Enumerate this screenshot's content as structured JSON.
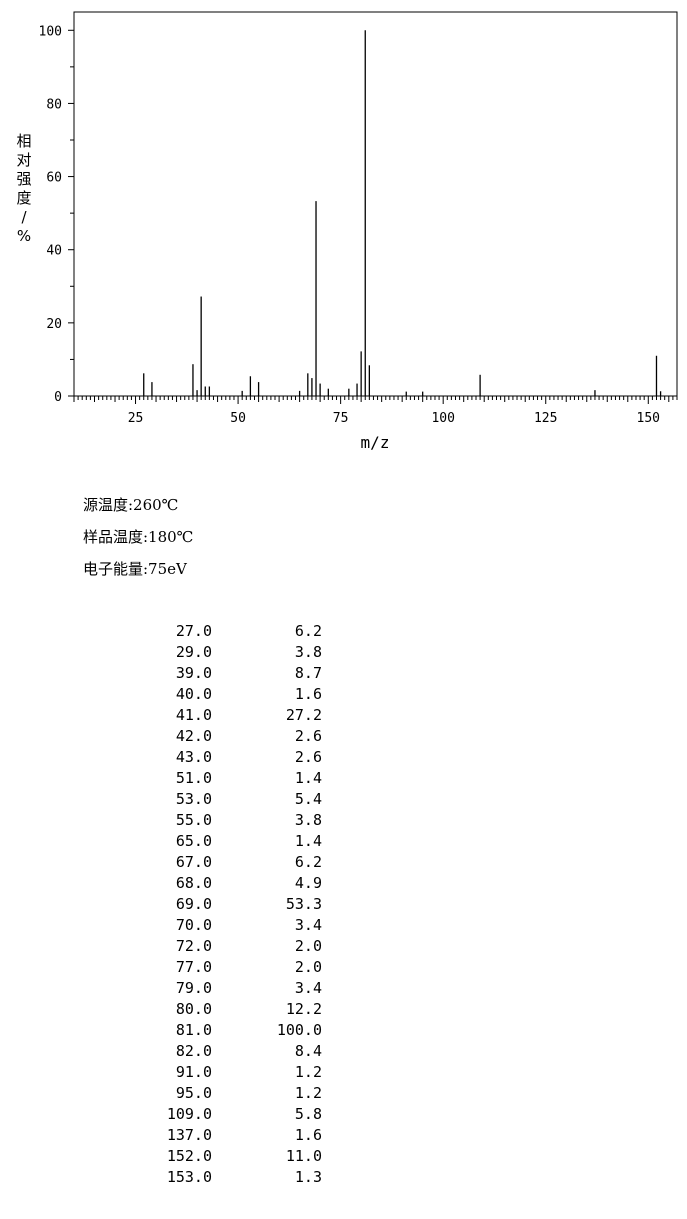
{
  "chart_data": {
    "type": "bar",
    "ylabel": "相对强度/%",
    "xlabel": "m/z",
    "xlim": [
      10,
      157
    ],
    "ylim": [
      0,
      105
    ],
    "xticks": [
      25,
      50,
      75,
      100,
      125,
      150
    ],
    "yticks": [
      0,
      20,
      40,
      60,
      80,
      100
    ],
    "grid": false,
    "peaks": [
      {
        "mz": 27.0,
        "intensity": 6.2
      },
      {
        "mz": 29.0,
        "intensity": 3.8
      },
      {
        "mz": 39.0,
        "intensity": 8.7
      },
      {
        "mz": 40.0,
        "intensity": 1.6
      },
      {
        "mz": 41.0,
        "intensity": 27.2
      },
      {
        "mz": 42.0,
        "intensity": 2.6
      },
      {
        "mz": 43.0,
        "intensity": 2.6
      },
      {
        "mz": 51.0,
        "intensity": 1.4
      },
      {
        "mz": 53.0,
        "intensity": 5.4
      },
      {
        "mz": 55.0,
        "intensity": 3.8
      },
      {
        "mz": 65.0,
        "intensity": 1.4
      },
      {
        "mz": 67.0,
        "intensity": 6.2
      },
      {
        "mz": 68.0,
        "intensity": 4.9
      },
      {
        "mz": 69.0,
        "intensity": 53.3
      },
      {
        "mz": 70.0,
        "intensity": 3.4
      },
      {
        "mz": 72.0,
        "intensity": 2.0
      },
      {
        "mz": 77.0,
        "intensity": 2.0
      },
      {
        "mz": 79.0,
        "intensity": 3.4
      },
      {
        "mz": 80.0,
        "intensity": 12.2
      },
      {
        "mz": 81.0,
        "intensity": 100.0
      },
      {
        "mz": 82.0,
        "intensity": 8.4
      },
      {
        "mz": 91.0,
        "intensity": 1.2
      },
      {
        "mz": 95.0,
        "intensity": 1.2
      },
      {
        "mz": 109.0,
        "intensity": 5.8
      },
      {
        "mz": 137.0,
        "intensity": 1.6
      },
      {
        "mz": 152.0,
        "intensity": 11.0
      },
      {
        "mz": 153.0,
        "intensity": 1.3
      }
    ]
  },
  "conditions": {
    "source_temp": "源温度:260℃",
    "sample_temp": "样品温度:180℃",
    "electron_energy": "电子能量:75eV"
  },
  "table": [
    [
      "27.0",
      "6.2"
    ],
    [
      "29.0",
      "3.8"
    ],
    [
      "39.0",
      "8.7"
    ],
    [
      "40.0",
      "1.6"
    ],
    [
      "41.0",
      "27.2"
    ],
    [
      "42.0",
      "2.6"
    ],
    [
      "43.0",
      "2.6"
    ],
    [
      "51.0",
      "1.4"
    ],
    [
      "53.0",
      "5.4"
    ],
    [
      "55.0",
      "3.8"
    ],
    [
      "65.0",
      "1.4"
    ],
    [
      "67.0",
      "6.2"
    ],
    [
      "68.0",
      "4.9"
    ],
    [
      "69.0",
      "53.3"
    ],
    [
      "70.0",
      "3.4"
    ],
    [
      "72.0",
      "2.0"
    ],
    [
      "77.0",
      "2.0"
    ],
    [
      "79.0",
      "3.4"
    ],
    [
      "80.0",
      "12.2"
    ],
    [
      "81.0",
      "100.0"
    ],
    [
      "82.0",
      "8.4"
    ],
    [
      "91.0",
      "1.2"
    ],
    [
      "95.0",
      "1.2"
    ],
    [
      "109.0",
      "5.8"
    ],
    [
      "137.0",
      "1.6"
    ],
    [
      "152.0",
      "11.0"
    ],
    [
      "153.0",
      "1.3"
    ]
  ]
}
